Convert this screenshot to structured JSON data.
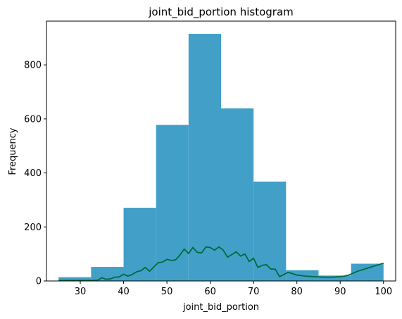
{
  "chart_data": {
    "type": "bar",
    "title": "joint_bid_portion histogram",
    "xlabel": "joint_bid_portion",
    "ylabel": "Frequency",
    "xlim": [
      22.2,
      102.8
    ],
    "ylim": [
      0,
      962
    ],
    "xticks": [
      30,
      40,
      50,
      60,
      70,
      80,
      90,
      100
    ],
    "yticks": [
      0,
      200,
      400,
      600,
      800
    ],
    "bar_color": "#42a0c8",
    "line_color": "#006b3c",
    "bins": [
      {
        "x0": 25.0,
        "x1": 32.5,
        "count": 14
      },
      {
        "x0": 32.5,
        "x1": 40.0,
        "count": 52
      },
      {
        "x0": 40.0,
        "x1": 47.5,
        "count": 271
      },
      {
        "x0": 47.5,
        "x1": 55.0,
        "count": 578
      },
      {
        "x0": 55.0,
        "x1": 62.5,
        "count": 915
      },
      {
        "x0": 62.5,
        "x1": 70.0,
        "count": 639
      },
      {
        "x0": 70.0,
        "x1": 77.5,
        "count": 368
      },
      {
        "x0": 77.5,
        "x1": 85.0,
        "count": 40
      },
      {
        "x0": 85.0,
        "x1": 92.5,
        "count": 20
      },
      {
        "x0": 92.5,
        "x1": 100.0,
        "count": 64
      }
    ],
    "series": [
      {
        "x": [
          25,
          27,
          29,
          31,
          33,
          34,
          35,
          36,
          37,
          38,
          39,
          40,
          41,
          42,
          43,
          44,
          45,
          46,
          47,
          48,
          49,
          50,
          51,
          52,
          53,
          54,
          55,
          56,
          57,
          58,
          59,
          60,
          61,
          62,
          63,
          64,
          65,
          66,
          67,
          68,
          69,
          70,
          71,
          72,
          73,
          74,
          75,
          76,
          77,
          78,
          80,
          82,
          84,
          86,
          88,
          90,
          91,
          92,
          94,
          96,
          98,
          100
        ],
        "y": [
          2,
          2,
          2,
          2,
          2,
          3,
          12,
          6,
          8,
          14,
          15,
          25,
          18,
          24,
          34,
          38,
          50,
          36,
          52,
          68,
          70,
          80,
          76,
          78,
          96,
          118,
          102,
          124,
          106,
          104,
          126,
          124,
          114,
          126,
          114,
          88,
          98,
          108,
          92,
          100,
          72,
          84,
          50,
          58,
          60,
          44,
          44,
          16,
          24,
          32,
          22,
          18,
          16,
          14,
          14,
          16,
          18,
          22,
          36,
          46,
          56,
          66
        ]
      }
    ]
  }
}
